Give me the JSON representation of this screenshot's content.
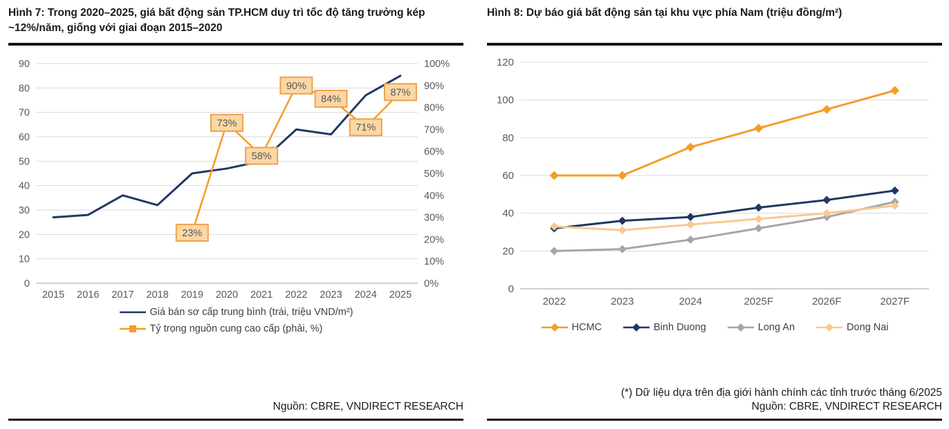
{
  "figure7": {
    "title": "Hình 7: Trong 2020–2025, giá bất động sản TP.HCM duy trì tốc độ tăng trưởng kép ~12%/năm, giống với giai đoạn 2015–2020",
    "source": "Nguồn: CBRE, VNDIRECT RESEARCH"
  },
  "figure8": {
    "title": "Hình 8: Dự báo giá bất động sản tại khu vực phía Nam (triệu đồng/m²)",
    "footnote": "(*) Dữ liệu dựa trên địa giới hành chính các tỉnh trước tháng 6/2025",
    "source": "Nguồn: CBRE, VNDIRECT RESEARCH"
  },
  "colors": {
    "navy": "#1f3864",
    "orange": "#f59c27",
    "gray_series": "#a6a6a6",
    "peach": "#f9c98f",
    "grid": "#d9d9d9",
    "axis_line": "#bfbfbf",
    "tick_text": "#595959",
    "label_box_fill": "#fcd7a6",
    "label_box_border": "#f0a04a",
    "label_text": "#595959"
  },
  "chart_data": [
    {
      "type": "line",
      "title": "Hình 7: Trong 2020–2025, giá bất động sản TP.HCM duy trì tốc độ tăng trưởng kép ~12%/năm, giống với giai đoạn 2015–2020",
      "categories": [
        "2015",
        "2016",
        "2017",
        "2018",
        "2019",
        "2020",
        "2021",
        "2022",
        "2023",
        "2024",
        "2025"
      ],
      "series": [
        {
          "id": "primary-price",
          "name": "Giá bán sơ cấp trung bình (trái, triệu VND/m²)",
          "axis": "left",
          "color": "#1f3864",
          "marker": "none",
          "width": 3,
          "values": [
            27,
            28,
            36,
            32,
            45,
            47,
            50,
            63,
            61,
            77,
            85
          ]
        },
        {
          "id": "premium-share",
          "name": "Tỷ trọng nguồn cung cao cấp (phải, %)",
          "axis": "right",
          "color": "#f59c27",
          "marker": "square",
          "width": 2.5,
          "data_labels": true,
          "label_suffix": "%",
          "values": [
            null,
            null,
            null,
            null,
            23,
            73,
            58,
            90,
            84,
            71,
            87
          ]
        }
      ],
      "left_axis": {
        "min": 0,
        "max": 90,
        "step": 10,
        "suffix": ""
      },
      "right_axis": {
        "min": 0,
        "max": 100,
        "step": 10,
        "suffix": "%"
      },
      "grid": true,
      "legend_position": "bottom"
    },
    {
      "type": "line",
      "title": "Hình 8: Dự báo giá bất động sản tại khu vực phía Nam (triệu đồng/m²)",
      "categories": [
        "2022",
        "2023",
        "2024",
        "2025F",
        "2026F",
        "2027F"
      ],
      "series": [
        {
          "id": "hcmc",
          "name": "HCMC",
          "axis": "left",
          "color": "#f59c27",
          "marker": "diamond",
          "width": 3,
          "marker_size": 6.5,
          "values": [
            60,
            60,
            75,
            85,
            95,
            105
          ]
        },
        {
          "id": "binh-duong",
          "name": "Binh Duong",
          "axis": "left",
          "color": "#1f3864",
          "marker": "diamond",
          "width": 3,
          "marker_size": 6,
          "values": [
            32,
            36,
            38,
            43,
            47,
            52
          ]
        },
        {
          "id": "long-an",
          "name": "Long An",
          "axis": "left",
          "color": "#a6a6a6",
          "marker": "diamond",
          "width": 3,
          "marker_size": 6,
          "values": [
            20,
            21,
            26,
            32,
            38,
            46
          ]
        },
        {
          "id": "dong-nai",
          "name": "Dong Nai",
          "axis": "left",
          "color": "#f9c98f",
          "marker": "diamond",
          "width": 3,
          "marker_size": 6,
          "values": [
            33,
            31,
            34,
            37,
            40,
            44
          ]
        }
      ],
      "left_axis": {
        "min": 0,
        "max": 120,
        "step": 20,
        "suffix": ""
      },
      "grid": true,
      "legend_position": "bottom"
    }
  ]
}
